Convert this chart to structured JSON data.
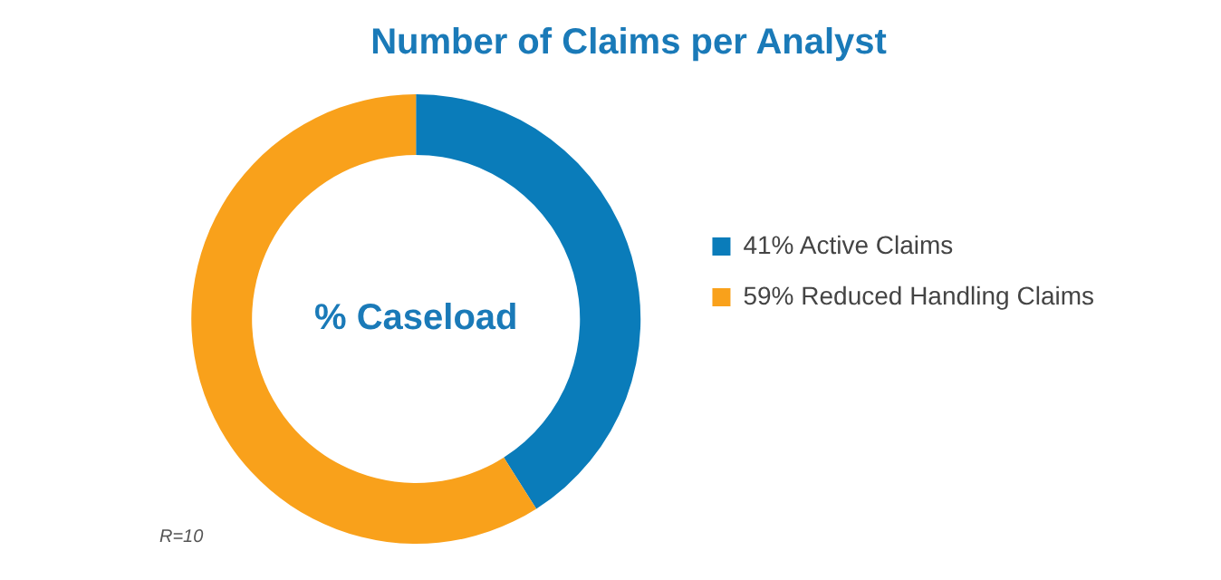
{
  "chart_data": {
    "type": "donut",
    "title": "Number of Claims per Analyst",
    "categories": [
      "41% Active Claims",
      "59% Reduced Handling Claims"
    ],
    "values": [
      41,
      59
    ],
    "colors": [
      "#0a7cba",
      "#f9a11b"
    ],
    "legend": "right",
    "annotations": [
      "% Caseload",
      "R=10"
    ]
  }
}
